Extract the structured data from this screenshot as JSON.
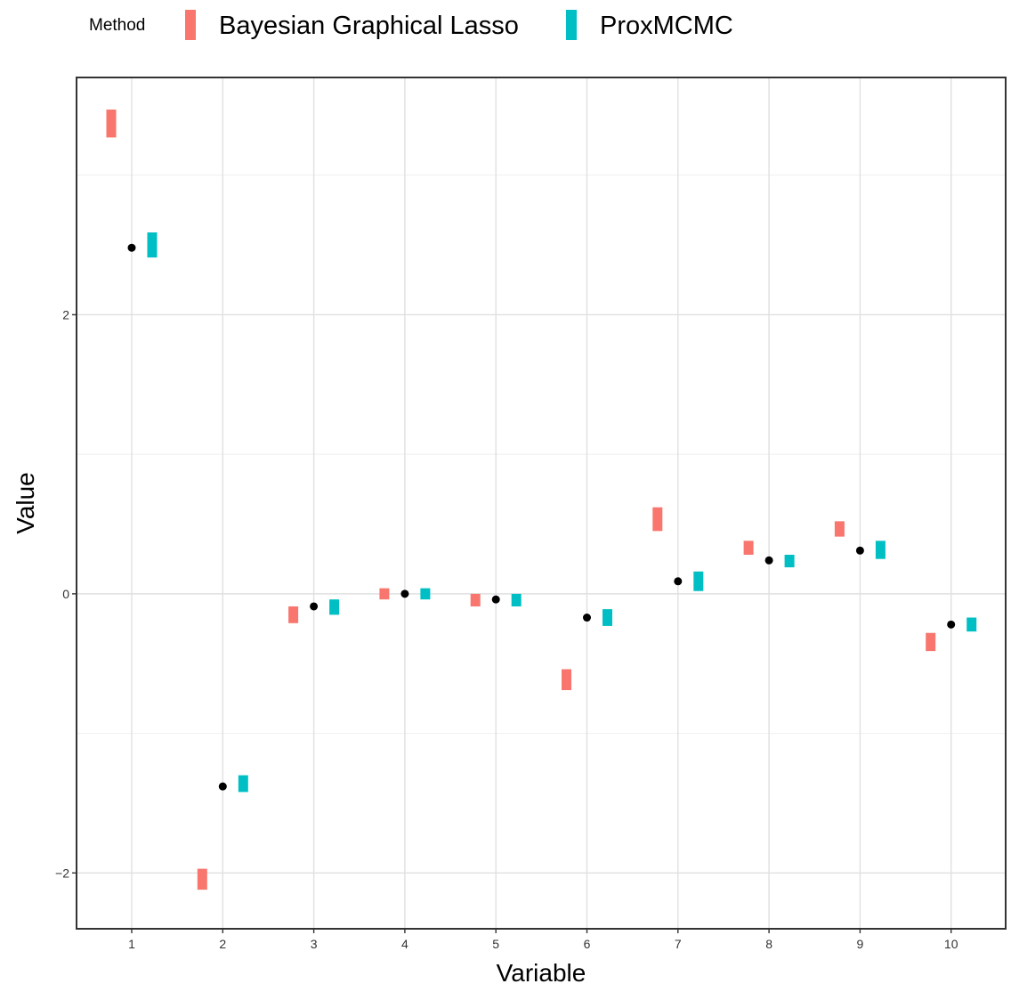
{
  "chart_data": {
    "type": "scatter",
    "subtype": "interval-with-truth-points",
    "title": "",
    "xlabel": "Variable",
    "ylabel": "Value",
    "categories": [
      "1",
      "2",
      "3",
      "4",
      "5",
      "6",
      "7",
      "8",
      "9",
      "10"
    ],
    "ylim": [
      -2.4,
      3.7
    ],
    "yticks": [
      -2,
      0,
      2
    ],
    "grid": true,
    "legend": {
      "title": "Method",
      "position": "top-left",
      "entries": [
        "Bayesian Graphical Lasso",
        "ProxMCMC"
      ]
    },
    "series": [
      {
        "name": "Bayesian Graphical Lasso",
        "color": "#F8766D",
        "lower": [
          3.27,
          -2.12,
          -0.21,
          -0.04,
          -0.09,
          -0.69,
          0.45,
          0.28,
          0.41,
          -0.41
        ],
        "upper": [
          3.47,
          -1.97,
          -0.09,
          0.04,
          0.0,
          -0.54,
          0.62,
          0.38,
          0.52,
          -0.28
        ]
      },
      {
        "name": "ProxMCMC",
        "color": "#00BFC4",
        "lower": [
          2.41,
          -1.42,
          -0.15,
          -0.04,
          -0.09,
          -0.23,
          0.02,
          0.19,
          0.25,
          -0.27
        ],
        "upper": [
          2.59,
          -1.3,
          -0.04,
          0.04,
          0.0,
          -0.11,
          0.16,
          0.28,
          0.38,
          -0.17
        ]
      }
    ],
    "truth": {
      "color": "#000000",
      "values": [
        2.48,
        -1.38,
        -0.09,
        0.0,
        -0.04,
        -0.17,
        0.09,
        0.24,
        0.31,
        -0.22
      ]
    }
  }
}
